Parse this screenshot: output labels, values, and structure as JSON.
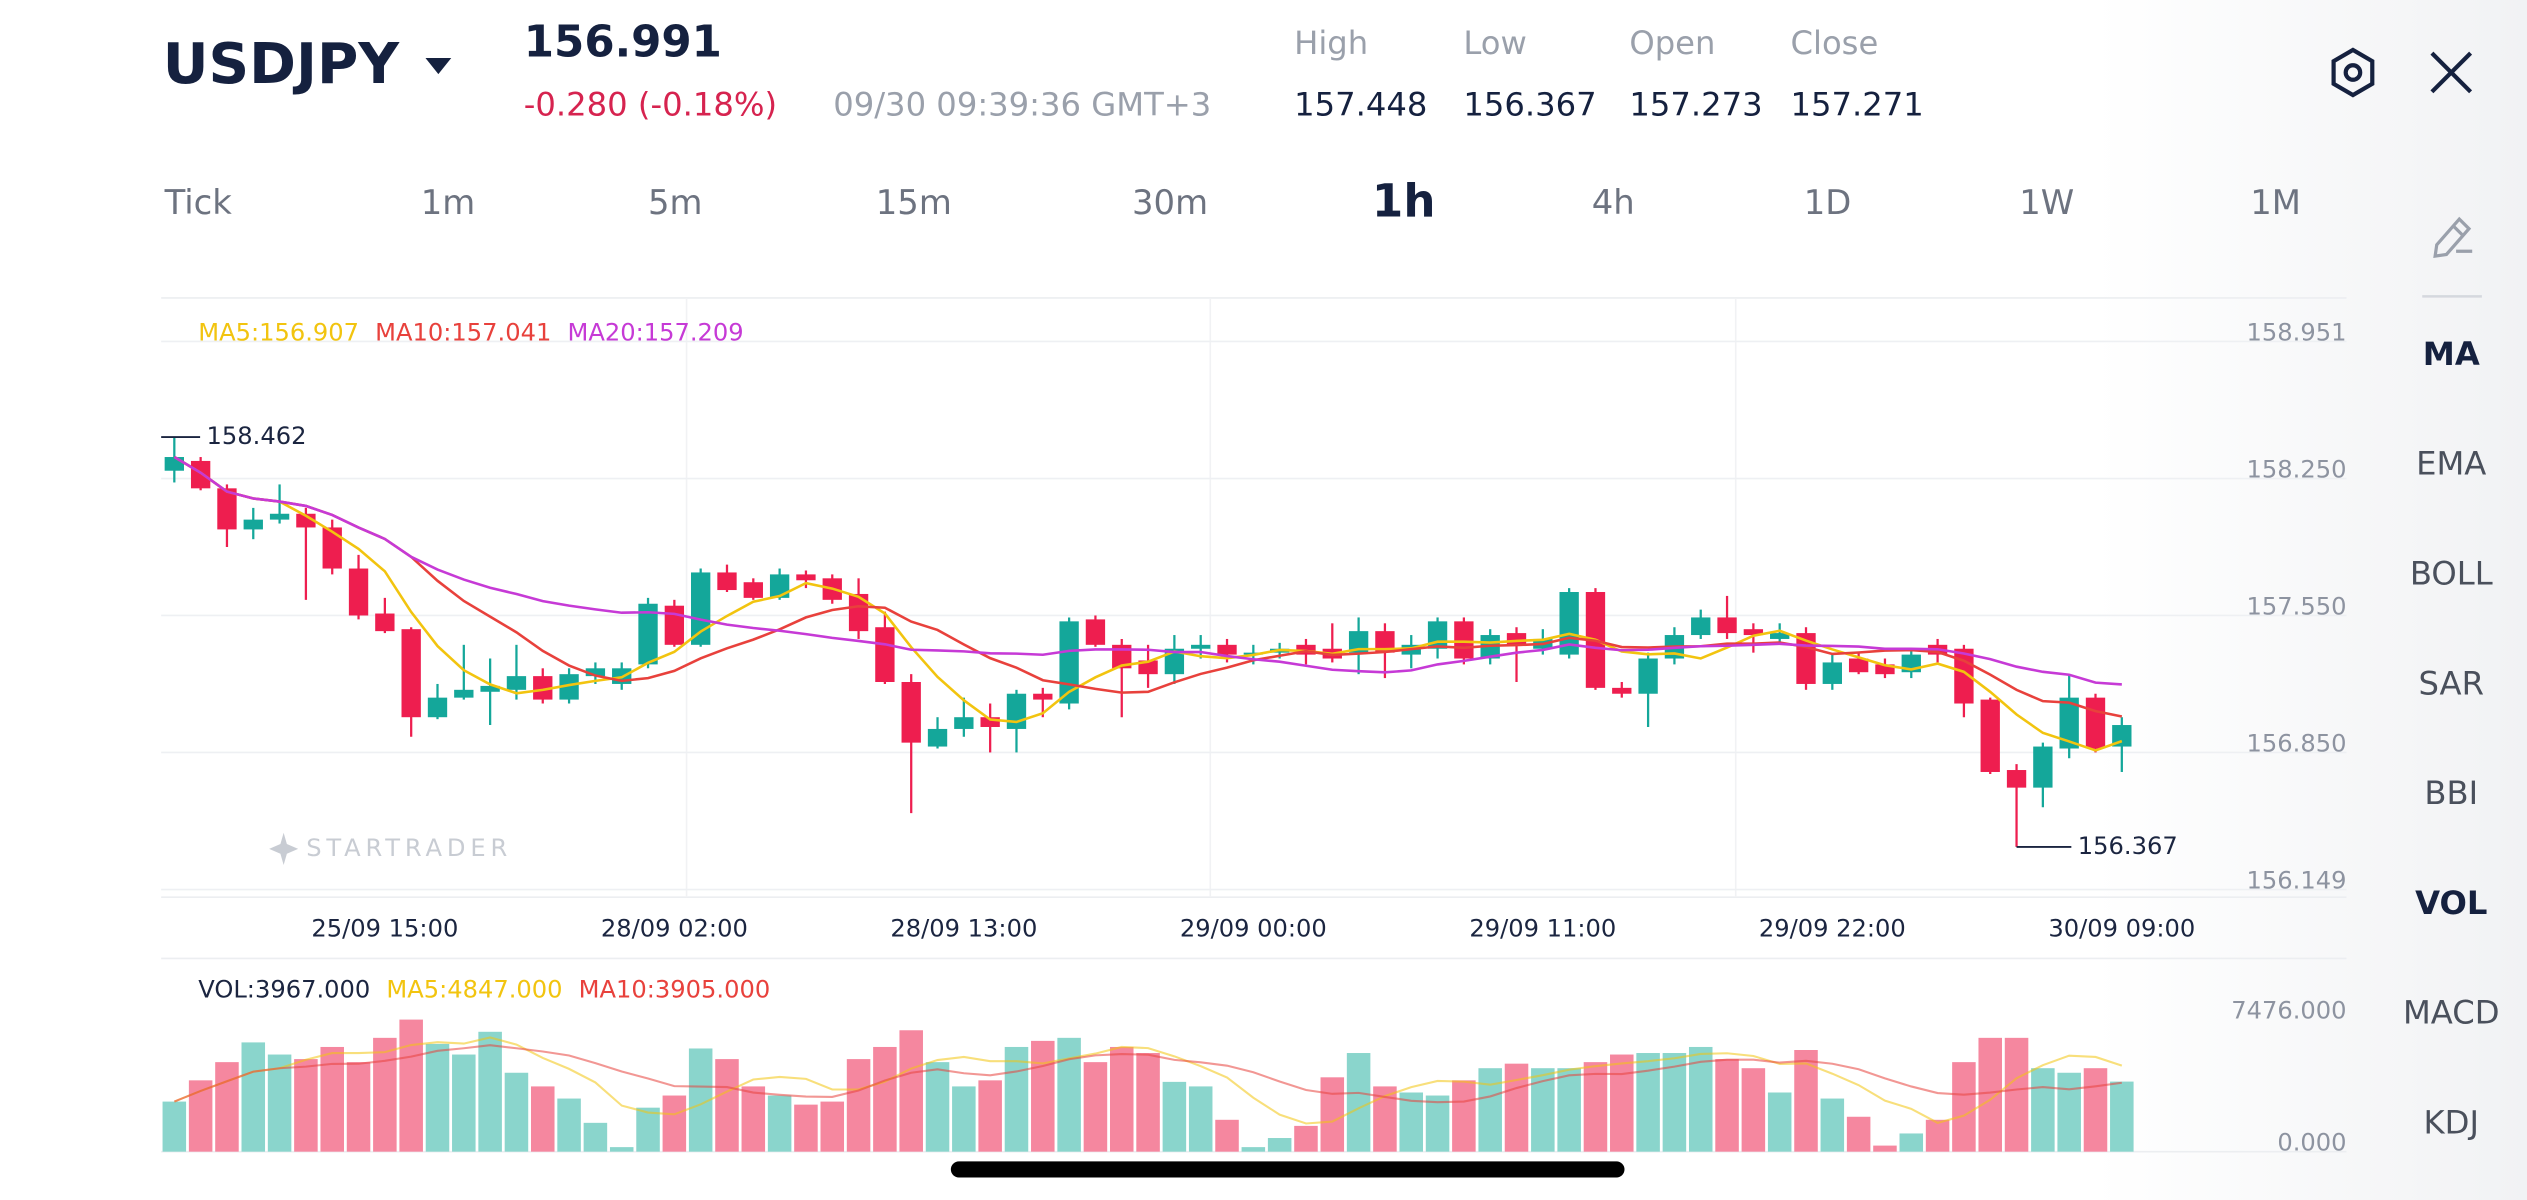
{
  "header": {
    "symbol": "USDJPY",
    "price": "156.991",
    "change": "-0.280 (-0.18%)",
    "timestamp": "09/30 09:39:36 GMT+3",
    "stats": [
      {
        "label": "High",
        "value": "157.448"
      },
      {
        "label": "Low",
        "value": "156.367"
      },
      {
        "label": "Open",
        "value": "157.273"
      },
      {
        "label": "Close",
        "value": "157.271"
      }
    ]
  },
  "timeframes": [
    "Tick",
    "1m",
    "5m",
    "15m",
    "30m",
    "1h",
    "4h",
    "1D",
    "1W",
    "1M"
  ],
  "selected_timeframe": "1h",
  "indicators": [
    "MA",
    "EMA",
    "BOLL",
    "SAR",
    "BBI",
    "VOL",
    "MACD",
    "KDJ"
  ],
  "selected_indicators": [
    "MA",
    "VOL"
  ],
  "watermark": "STARTRADER",
  "chart_data": {
    "type": "candlestick",
    "grid": true,
    "up_color": "#14a79a",
    "down_color": "#ee1e4f",
    "ma_legend": [
      {
        "text": "MA5:156.907",
        "color": "#f2c40f"
      },
      {
        "text": "MA10:157.041",
        "color": "#e8413c"
      },
      {
        "text": "MA20:157.209",
        "color": "#c63ad6"
      }
    ],
    "categories": [
      null,
      null,
      null,
      null,
      null,
      null,
      null,
      null,
      "25/09 15:00",
      null,
      null,
      null,
      null,
      null,
      null,
      null,
      null,
      null,
      null,
      "28/09 02:00",
      null,
      null,
      null,
      null,
      null,
      null,
      null,
      null,
      null,
      null,
      "28/09 13:00",
      null,
      null,
      null,
      null,
      null,
      null,
      null,
      null,
      null,
      null,
      "29/09 00:00",
      null,
      null,
      null,
      null,
      null,
      null,
      null,
      null,
      null,
      null,
      "29/09 11:00",
      null,
      null,
      null,
      null,
      null,
      null,
      null,
      null,
      null,
      null,
      "29/09 22:00",
      null,
      null,
      null,
      null,
      null,
      null,
      null,
      null,
      null,
      null,
      "30/09 09:00"
    ],
    "open": [
      158.29,
      158.34,
      158.2,
      157.99,
      158.04,
      158.07,
      158.0,
      157.79,
      157.56,
      157.48,
      157.03,
      157.13,
      157.16,
      157.17,
      157.24,
      157.12,
      157.24,
      157.2,
      157.3,
      157.6,
      157.4,
      157.77,
      157.72,
      157.64,
      157.76,
      157.74,
      157.66,
      157.49,
      157.21,
      156.88,
      156.97,
      157.03,
      156.97,
      157.15,
      157.1,
      157.53,
      157.4,
      157.32,
      157.25,
      157.38,
      157.4,
      157.35,
      157.36,
      157.4,
      157.38,
      157.36,
      157.47,
      157.35,
      157.38,
      157.52,
      157.33,
      157.46,
      157.38,
      157.35,
      157.67,
      157.18,
      157.15,
      157.33,
      157.45,
      157.54,
      157.48,
      157.43,
      157.46,
      157.2,
      157.33,
      157.3,
      157.26,
      157.4,
      157.38,
      157.12,
      156.76,
      156.67,
      156.87,
      157.13,
      156.88
    ],
    "close": [
      158.36,
      158.2,
      157.99,
      158.04,
      158.07,
      158.0,
      157.79,
      157.55,
      157.47,
      157.03,
      157.13,
      157.17,
      157.19,
      157.24,
      157.12,
      157.25,
      157.28,
      157.28,
      157.61,
      157.4,
      157.77,
      157.68,
      157.64,
      157.76,
      157.73,
      157.63,
      157.47,
      157.21,
      156.9,
      156.97,
      157.03,
      156.98,
      157.15,
      157.12,
      157.52,
      157.4,
      157.28,
      157.25,
      157.38,
      157.4,
      157.35,
      157.36,
      157.38,
      157.35,
      157.33,
      157.47,
      157.36,
      157.4,
      157.52,
      157.33,
      157.45,
      157.4,
      157.43,
      157.67,
      157.18,
      157.15,
      157.33,
      157.45,
      157.54,
      157.46,
      157.45,
      157.46,
      157.2,
      157.31,
      157.26,
      157.25,
      157.35,
      157.35,
      157.1,
      156.75,
      156.67,
      156.88,
      157.13,
      156.87,
      156.99
    ],
    "high": [
      158.462,
      158.36,
      158.22,
      158.1,
      158.22,
      158.1,
      158.04,
      157.86,
      157.64,
      157.49,
      157.2,
      157.4,
      157.33,
      157.4,
      157.28,
      157.28,
      157.31,
      157.31,
      157.64,
      157.63,
      157.79,
      157.81,
      157.74,
      157.79,
      157.78,
      157.76,
      157.74,
      157.57,
      157.25,
      157.03,
      157.13,
      157.1,
      157.17,
      157.18,
      157.54,
      157.55,
      157.43,
      157.4,
      157.45,
      157.45,
      157.43,
      157.4,
      157.41,
      157.43,
      157.51,
      157.54,
      157.51,
      157.45,
      157.54,
      157.54,
      157.48,
      157.49,
      157.48,
      157.69,
      157.69,
      157.21,
      157.36,
      157.49,
      157.58,
      157.65,
      157.51,
      157.51,
      157.49,
      157.35,
      157.36,
      157.33,
      157.38,
      157.43,
      157.4,
      157.13,
      156.79,
      156.9,
      157.25,
      157.15,
      157.03
    ],
    "low": [
      158.23,
      158.19,
      157.9,
      157.94,
      158.02,
      157.63,
      157.76,
      157.53,
      157.46,
      156.93,
      157.02,
      157.12,
      156.99,
      157.12,
      157.1,
      157.1,
      157.2,
      157.17,
      157.28,
      157.39,
      157.39,
      157.67,
      157.63,
      157.63,
      157.69,
      157.61,
      157.43,
      157.2,
      156.54,
      156.87,
      156.93,
      156.85,
      156.85,
      157.03,
      157.07,
      157.39,
      157.03,
      157.18,
      157.2,
      157.33,
      157.31,
      157.3,
      157.33,
      157.3,
      157.31,
      157.25,
      157.23,
      157.28,
      157.33,
      157.3,
      157.3,
      157.21,
      157.35,
      157.33,
      157.17,
      157.13,
      156.98,
      157.3,
      157.43,
      157.43,
      157.36,
      157.4,
      157.17,
      157.17,
      157.25,
      157.23,
      157.23,
      157.31,
      157.03,
      156.74,
      156.367,
      156.57,
      156.82,
      156.85,
      156.75
    ],
    "ylim": [
      156.11,
      159.173
    ],
    "yticks": [
      158.951,
      {
        "value": 158.25,
        "label": "158.250"
      },
      {
        "value": 157.55,
        "label": "157.550"
      },
      {
        "value": 156.85,
        "label": "156.850"
      },
      156.149
    ],
    "volume": {
      "legend": [
        {
          "text": "VOL:3967.000",
          "color": "#1b2540"
        },
        {
          "text": "MA5:4847.000",
          "color": "#f2c40f"
        },
        {
          "text": "MA10:3905.000",
          "color": "#e8413c"
        }
      ],
      "values": [
        2835,
        4037,
        5068,
        6185,
        5498,
        5240,
        5927,
        5068,
        6443,
        7476,
        6099,
        5498,
        6786,
        4467,
        3694,
        3007,
        1632,
        258,
        2491,
        3178,
        5841,
        5240,
        3694,
        3178,
        2663,
        2835,
        5240,
        5927,
        6872,
        5068,
        3694,
        4037,
        5927,
        6271,
        6443,
        5068,
        5927,
        5584,
        3951,
        3694,
        1804,
        258,
        773,
        1460,
        4209,
        5584,
        3694,
        3350,
        3178,
        4037,
        4725,
        4982,
        4725,
        4725,
        5068,
        5498,
        5584,
        5584,
        5927,
        5240,
        4725,
        3350,
        5755,
        3007,
        1976,
        344,
        1031,
        1804,
        5068,
        6443,
        6443,
        4725,
        4467,
        4725,
        3967
      ],
      "ylim": [
        0,
        10940
      ],
      "yticks": [
        {
          "value": 7476,
          "label": "7476.000"
        },
        {
          "value": 0,
          "label": "0.000"
        }
      ],
      "up_color": "#8ad5cc",
      "down_color": "#f5879f"
    }
  }
}
